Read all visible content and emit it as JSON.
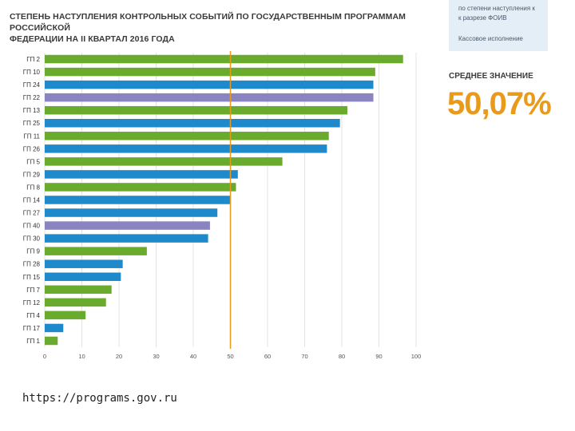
{
  "header": {
    "title_line1": "СТЕПЕНЬ НАСТУПЛЕНИЯ КОНТРОЛЬНЫХ СОБЫТИЙ ПО ГОСУДАРСТВЕННЫМ ПРОГРАММАМ РОССИЙСКОЙ",
    "title_line2": "ФЕДЕРАЦИИ НА II КВАРТАЛ 2016 ГОДА"
  },
  "side_panel": {
    "line1": "по степени наступления к",
    "line2": "к разрезе ФОИВ",
    "line3": "Кассовое исполнение"
  },
  "average": {
    "label": "СРЕДНЕЕ ЗНАЧЕНИЕ",
    "value": "50,07%"
  },
  "source": "https://programs.gov.ru",
  "colors": {
    "green": "#6aab2e",
    "blue": "#1f8acb",
    "purple": "#8a84c0",
    "reference_line": "#ea9a1b",
    "grid": "#e3e3e3"
  },
  "chart_data": {
    "type": "bar",
    "orientation": "horizontal",
    "categories": [
      "ГП 2",
      "ГП 10",
      "ГП 24",
      "ГП 22",
      "ГП 13",
      "ГП 25",
      "ГП 11",
      "ГП 26",
      "ГП 5",
      "ГП 29",
      "ГП 8",
      "ГП 14",
      "ГП 27",
      "ГП 40",
      "ГП 30",
      "ГП 9",
      "ГП 28",
      "ГП 15",
      "ГП 7",
      "ГП 12",
      "ГП 4",
      "ГП 17",
      "ГП 1"
    ],
    "values": [
      96.5,
      89,
      88.5,
      88.5,
      81.5,
      79.5,
      76.5,
      76,
      64,
      52,
      51.5,
      50,
      46.5,
      44.5,
      44,
      27.5,
      21,
      20.5,
      18,
      16.5,
      11,
      5,
      3.5
    ],
    "bar_colors": [
      "green",
      "green",
      "blue",
      "purple",
      "green",
      "blue",
      "green",
      "blue",
      "green",
      "blue",
      "green",
      "blue",
      "blue",
      "purple",
      "blue",
      "green",
      "blue",
      "blue",
      "green",
      "green",
      "green",
      "blue",
      "green"
    ],
    "xlim": [
      0,
      100
    ],
    "xticks": [
      0,
      10,
      20,
      30,
      40,
      50,
      60,
      70,
      80,
      90,
      100
    ],
    "reference_line": 50,
    "grid": true
  }
}
